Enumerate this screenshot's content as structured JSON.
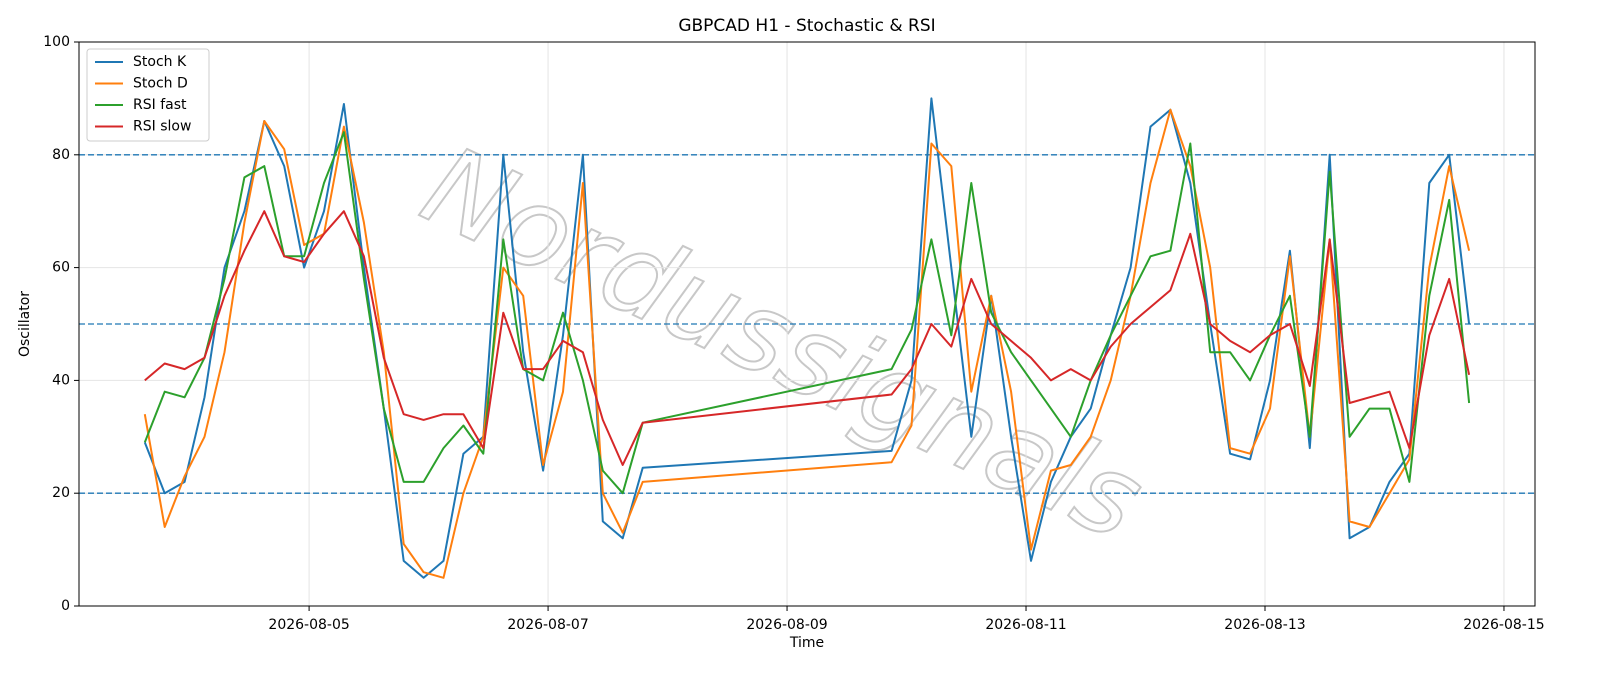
{
  "chart_data": {
    "type": "line",
    "title": "GBPCAD H1 - Stochastic & RSI",
    "xlabel": "Time",
    "ylabel": "Oscillator",
    "watermark": "Nordussignals",
    "x": [
      "2026-08-03 15:00",
      "2026-08-03 19:00",
      "2026-08-03 23:00",
      "2026-08-04 03:00",
      "2026-08-04 07:00",
      "2026-08-04 11:00",
      "2026-08-04 15:00",
      "2026-08-04 19:00",
      "2026-08-04 23:00",
      "2026-08-05 03:00",
      "2026-08-05 07:00",
      "2026-08-05 11:00",
      "2026-08-05 15:00",
      "2026-08-05 19:00",
      "2026-08-05 23:00",
      "2026-08-06 03:00",
      "2026-08-06 07:00",
      "2026-08-06 11:00",
      "2026-08-06 15:00",
      "2026-08-06 19:00",
      "2026-08-06 23:00",
      "2026-08-07 03:00",
      "2026-08-07 07:00",
      "2026-08-07 11:00",
      "2026-08-07 15:00",
      "2026-08-07 19:00",
      "2026-08-09 21:00",
      "2026-08-10 01:00",
      "2026-08-10 05:00",
      "2026-08-10 09:00",
      "2026-08-10 13:00",
      "2026-08-10 17:00",
      "2026-08-10 21:00",
      "2026-08-11 01:00",
      "2026-08-11 05:00",
      "2026-08-11 09:00",
      "2026-08-11 13:00",
      "2026-08-11 17:00",
      "2026-08-11 21:00",
      "2026-08-12 01:00",
      "2026-08-12 05:00",
      "2026-08-12 09:00",
      "2026-08-12 13:00",
      "2026-08-12 17:00",
      "2026-08-12 21:00",
      "2026-08-13 01:00",
      "2026-08-13 05:00",
      "2026-08-13 09:00",
      "2026-08-13 13:00",
      "2026-08-13 17:00",
      "2026-08-13 21:00",
      "2026-08-14 01:00",
      "2026-08-14 05:00",
      "2026-08-14 09:00",
      "2026-08-14 13:00",
      "2026-08-14 17:00"
    ],
    "series": [
      {
        "name": "Stoch K",
        "color": "#1f77b4",
        "values": [
          29,
          20,
          22,
          37,
          60,
          70,
          86,
          78,
          60,
          70,
          89,
          60,
          35,
          8,
          5,
          8,
          27,
          30,
          80,
          45,
          24,
          48,
          80,
          15,
          12,
          24.5,
          27.5,
          40,
          90,
          60,
          30,
          55,
          30,
          8,
          22,
          30,
          35,
          48,
          60,
          85,
          88,
          75,
          50,
          27,
          26,
          40,
          63,
          28,
          80,
          12,
          14,
          22,
          27,
          75,
          80,
          50
        ]
      },
      {
        "name": "Stoch D",
        "color": "#ff7f0e",
        "values": [
          34,
          14,
          23,
          30,
          45,
          68,
          86,
          81,
          64,
          66,
          85,
          68,
          45,
          11,
          6,
          5,
          20,
          30,
          60,
          55,
          25,
          38,
          75,
          20,
          13,
          22,
          25.5,
          32,
          82,
          78,
          38,
          55,
          38,
          10,
          24,
          25,
          30,
          40,
          55,
          75,
          88,
          78,
          60,
          28,
          27,
          35,
          62,
          30,
          65,
          15,
          14,
          20,
          26,
          60,
          78,
          63
        ]
      },
      {
        "name": "RSI fast",
        "color": "#2ca02c",
        "values": [
          29,
          38,
          37,
          44,
          58,
          76,
          78,
          62,
          62,
          75,
          84,
          58,
          35,
          22,
          22,
          28,
          32,
          27,
          65,
          42,
          40,
          52,
          40,
          24,
          20,
          32.5,
          42,
          49,
          65,
          48,
          75,
          52,
          45,
          40,
          35,
          30,
          40,
          48,
          55,
          62,
          63,
          82,
          45,
          45,
          40,
          48,
          55,
          30,
          77,
          30,
          35,
          35,
          22,
          55,
          72,
          36
        ]
      },
      {
        "name": "RSI slow",
        "color": "#d62728",
        "values": [
          40,
          43,
          42,
          44,
          55,
          63,
          70,
          62,
          61,
          66,
          70,
          62,
          44,
          34,
          33,
          34,
          34,
          28,
          52,
          42,
          42,
          47,
          45,
          33,
          25,
          32.5,
          37.5,
          42,
          50,
          46,
          58,
          50,
          47,
          44,
          40,
          42,
          40,
          46,
          50,
          53,
          56,
          66,
          50,
          47,
          45,
          48,
          50,
          39,
          65,
          36,
          37,
          38,
          28,
          48,
          58,
          41
        ]
      }
    ],
    "xlim": [
      "2026-08-03 01:47",
      "2026-08-15 06:14"
    ],
    "xticks": [
      "2026-08-05",
      "2026-08-07",
      "2026-08-09",
      "2026-08-11",
      "2026-08-13",
      "2026-08-15"
    ],
    "ylim": [
      0,
      100
    ],
    "yticks": [
      0,
      20,
      40,
      60,
      80,
      100
    ],
    "hlines": [
      20,
      50,
      80
    ],
    "hline_color": "#1f77b4",
    "grid": true,
    "legend": "upper-left"
  }
}
